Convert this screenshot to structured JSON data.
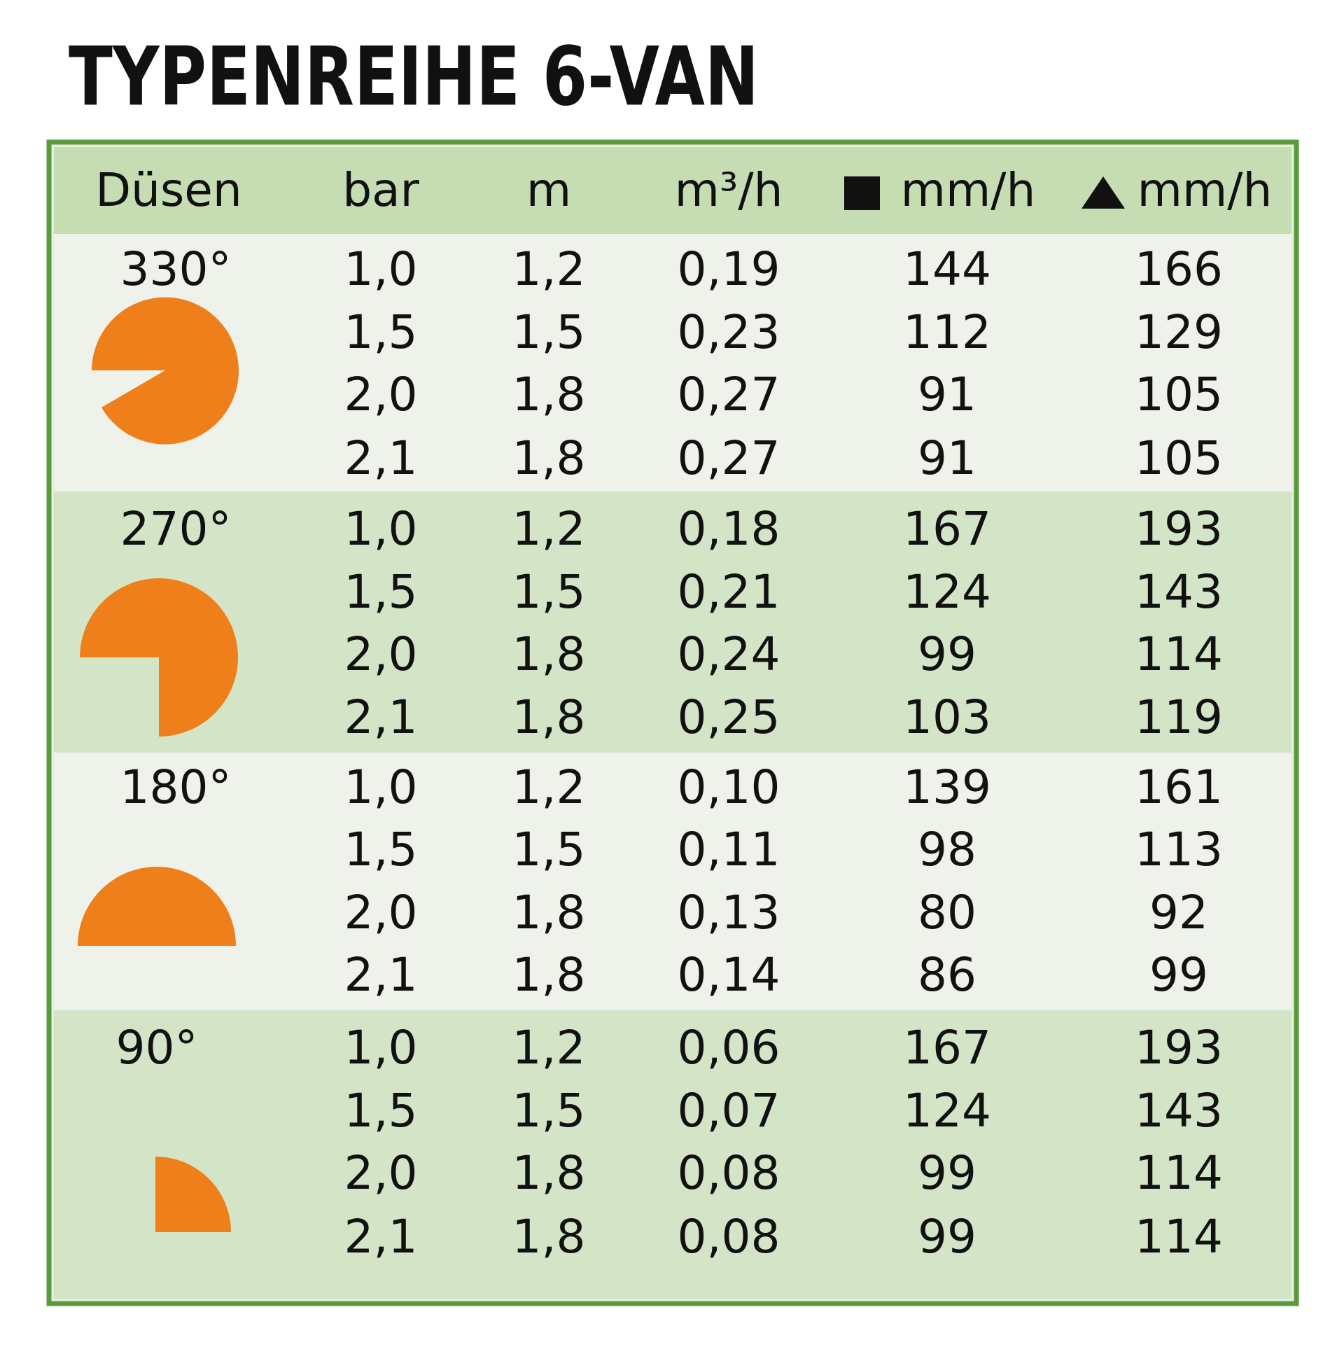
{
  "title": "TYPENREIHE 6-VAN",
  "table": {
    "header": [
      "Düsen",
      "bar",
      "m",
      "m³/h",
      "mm/h",
      "mm/h"
    ],
    "groups": [
      {
        "label": "330°",
        "rows": [
          [
            "1,0",
            "1,2",
            "0,19",
            "144",
            "166"
          ],
          [
            "1,5",
            "1,5",
            "0,23",
            "112",
            "129"
          ],
          [
            "2,0",
            "1,8",
            "0,27",
            "91",
            "105"
          ],
          [
            "2,1",
            "1,8",
            "0,27",
            "91",
            "105"
          ]
        ]
      },
      {
        "label": "270°",
        "rows": [
          [
            "1,0",
            "1,2",
            "0,18",
            "167",
            "193"
          ],
          [
            "1,5",
            "1,5",
            "0,21",
            "124",
            "143"
          ],
          [
            "2,0",
            "1,8",
            "0,24",
            "99",
            "114"
          ],
          [
            "2,1",
            "1,8",
            "0,25",
            "103",
            "119"
          ]
        ]
      },
      {
        "label": "180°",
        "rows": [
          [
            "1,0",
            "1,2",
            "0,10",
            "139",
            "161"
          ],
          [
            "1,5",
            "1,5",
            "0,11",
            "98",
            "113"
          ],
          [
            "2,0",
            "1,8",
            "0,13",
            "80",
            "92"
          ],
          [
            "2,1",
            "1,8",
            "0,14",
            "86",
            "99"
          ]
        ]
      },
      {
        "label": "90°",
        "rows": [
          [
            "1,0",
            "1,2",
            "0,06",
            "167",
            "193"
          ],
          [
            "1,5",
            "1,5",
            "0,07",
            "124",
            "143"
          ],
          [
            "2,0",
            "1,8",
            "0,08",
            "99",
            "114"
          ],
          [
            "2,1",
            "1,8",
            "0,08",
            "99",
            "114"
          ]
        ]
      }
    ]
  }
}
